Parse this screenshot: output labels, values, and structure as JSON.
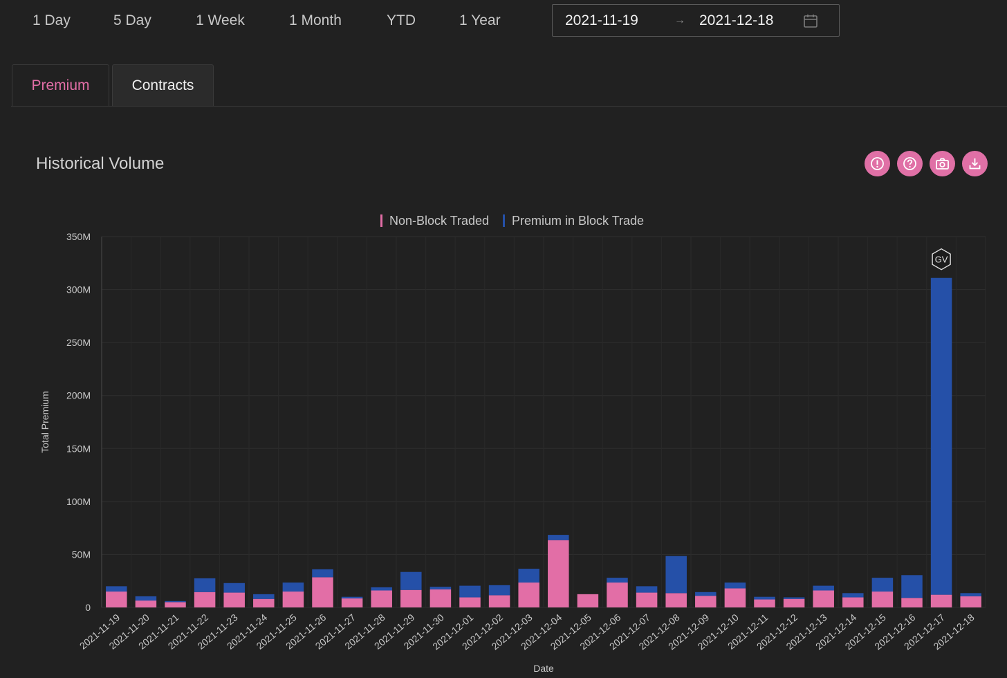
{
  "range_buttons": [
    "1 Day",
    "5 Day",
    "1 Week",
    "1 Month",
    "YTD",
    "1 Year"
  ],
  "date_range": {
    "start": "2021-11-19",
    "separator": "→",
    "end": "2021-12-18"
  },
  "tabs": [
    "Premium",
    "Contracts"
  ],
  "section_title": "Historical Volume",
  "toolbar_icons": [
    "alert-icon",
    "help-icon",
    "camera-icon",
    "download-icon"
  ],
  "colors": {
    "accent": "#e26ea6",
    "non_block": "#e26ea6",
    "block": "#2550a8",
    "background": "#212121"
  },
  "chart_data": {
    "type": "bar",
    "stacked": true,
    "xlabel": "Date",
    "ylabel": "Total Premium",
    "ylim": [
      0,
      350000000
    ],
    "yticks": [
      "0",
      "50M",
      "100M",
      "150M",
      "200M",
      "250M",
      "300M",
      "350M"
    ],
    "legend": "top-center",
    "annotation": "GV",
    "categories": [
      "2021-11-19",
      "2021-11-20",
      "2021-11-21",
      "2021-11-22",
      "2021-11-23",
      "2021-11-24",
      "2021-11-25",
      "2021-11-26",
      "2021-11-27",
      "2021-11-28",
      "2021-11-29",
      "2021-11-30",
      "2021-12-01",
      "2021-12-02",
      "2021-12-03",
      "2021-12-04",
      "2021-12-05",
      "2021-12-06",
      "2021-12-07",
      "2021-12-08",
      "2021-12-09",
      "2021-12-10",
      "2021-12-11",
      "2021-12-12",
      "2021-12-13",
      "2021-12-14",
      "2021-12-15",
      "2021-12-16",
      "2021-12-17",
      "2021-12-18"
    ],
    "series": [
      {
        "name": "Non-Block Traded",
        "values": [
          15000000,
          6500000,
          5000000,
          14500000,
          14000000,
          8000000,
          15000000,
          28500000,
          8500000,
          16000000,
          16500000,
          17000000,
          9500000,
          11500000,
          23500000,
          63500000,
          12500000,
          23500000,
          14000000,
          13500000,
          11000000,
          18000000,
          7500000,
          8000000,
          16000000,
          9500000,
          15000000,
          9000000,
          12000000,
          10500000
        ]
      },
      {
        "name": "Premium in Block Trade",
        "values": [
          5000000,
          4000000,
          1000000,
          13000000,
          9000000,
          4500000,
          8500000,
          7500000,
          1500000,
          3000000,
          17000000,
          2500000,
          11000000,
          9500000,
          13000000,
          5000000,
          0,
          4500000,
          6000000,
          35000000,
          3500000,
          5500000,
          2500000,
          1500000,
          4500000,
          4000000,
          13000000,
          21500000,
          299000000,
          3000000
        ]
      }
    ]
  }
}
